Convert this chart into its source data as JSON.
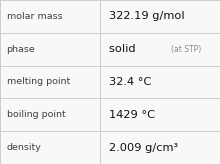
{
  "rows": [
    {
      "label": "molar mass",
      "value": "322.19 g/mol"
    },
    {
      "label": "phase",
      "value": "solid",
      "extra": "(at STP)"
    },
    {
      "label": "melting point",
      "value": "32.4 °C"
    },
    {
      "label": "boiling point",
      "value": "1429 °C"
    },
    {
      "label": "density",
      "value": "2.009 g/cm³"
    }
  ],
  "col_split": 0.455,
  "bg_color": "#f8f8f8",
  "border_color": "#cccccc",
  "label_color": "#404040",
  "value_color": "#111111",
  "extra_color": "#888888",
  "label_fontsize": 6.8,
  "value_fontsize": 8.2,
  "extra_fontsize": 5.5
}
